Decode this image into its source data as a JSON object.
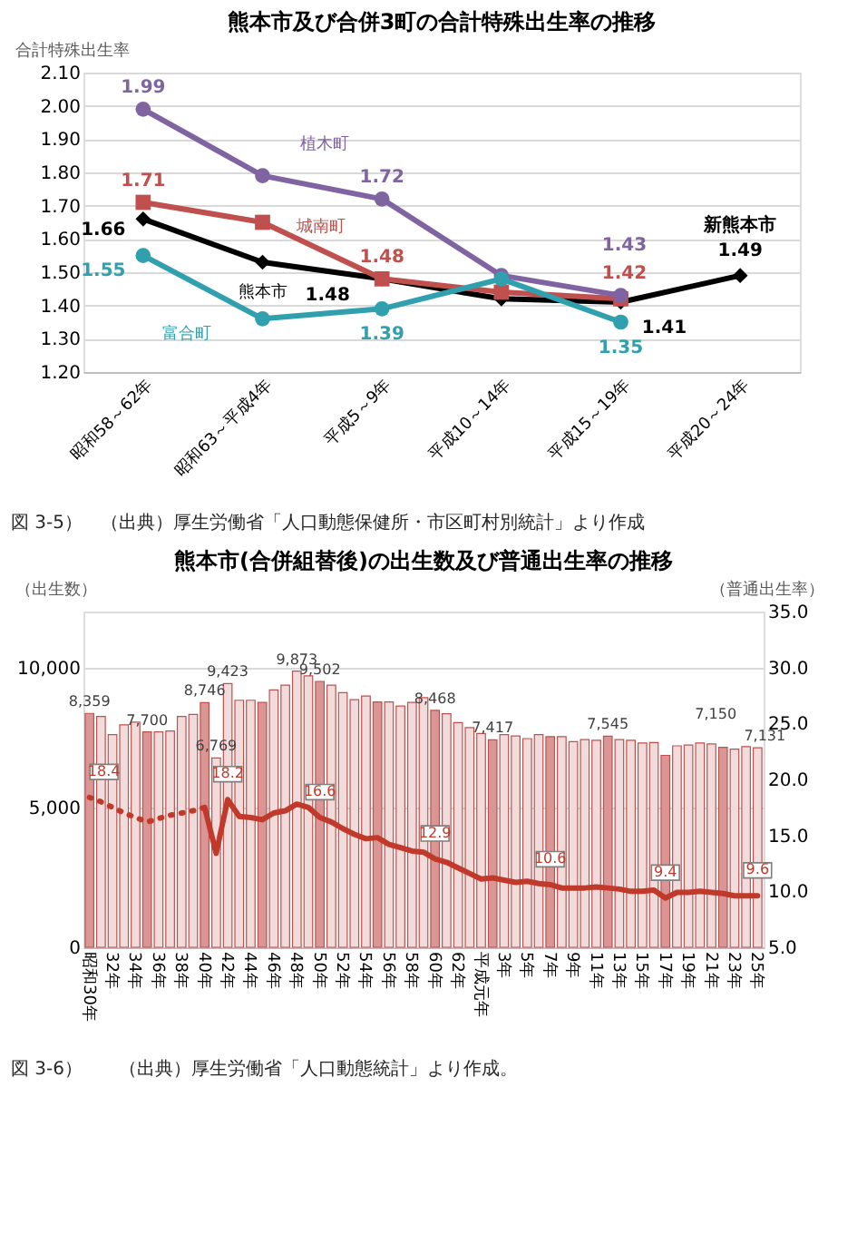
{
  "chart_data": [
    {
      "type": "line",
      "title": "熊本市及び合併3町の合計特殊出生率の推移",
      "ylabel": "合計特殊出生率",
      "categories": [
        "昭和58～62年",
        "昭和63～平成4年",
        "平成5～9年",
        "平成10～14年",
        "平成15～19年",
        "平成20～24年"
      ],
      "ylim": [
        1.2,
        2.1
      ],
      "yticks": [
        {
          "value": 1.2,
          "label": "1.20"
        },
        {
          "value": 1.3,
          "label": "1.30"
        },
        {
          "value": 1.4,
          "label": "1.40"
        },
        {
          "value": 1.5,
          "label": "1.50"
        },
        {
          "value": 1.6,
          "label": "1.60"
        },
        {
          "value": 1.7,
          "label": "1.70"
        },
        {
          "value": 1.8,
          "label": "1.80"
        },
        {
          "value": 1.9,
          "label": "1.90"
        },
        {
          "value": 2.0,
          "label": "2.00"
        },
        {
          "value": 2.1,
          "label": "2.10"
        }
      ],
      "grid": "y",
      "line_style": "solid",
      "series": [
        {
          "name": "熊本市",
          "color": "#000000",
          "marker": "diamond",
          "values": [
            1.66,
            1.53,
            1.48,
            1.42,
            1.41,
            1.49
          ],
          "value_labels": [
            "1.66",
            null,
            "1.48",
            null,
            "1.41",
            "1.49"
          ]
        },
        {
          "name": "城南町",
          "color": "#c0504d",
          "marker": "square",
          "values": [
            1.71,
            1.65,
            1.48,
            1.44,
            1.42,
            null
          ],
          "value_labels": [
            "1.71",
            null,
            "1.48",
            null,
            "1.42",
            null
          ]
        },
        {
          "name": "植木町",
          "color": "#8064a2",
          "marker": "circle",
          "values": [
            1.99,
            1.79,
            1.72,
            1.49,
            1.43,
            null
          ],
          "value_labels": [
            "1.99",
            null,
            "1.72",
            null,
            "1.43",
            null
          ]
        },
        {
          "name": "富合町",
          "color": "#31a0ae",
          "marker": "circle",
          "values": [
            1.55,
            1.36,
            1.39,
            1.48,
            1.35,
            null
          ],
          "value_labels": [
            "1.55",
            null,
            "1.39",
            null,
            "1.35",
            null
          ]
        }
      ],
      "annotations": [
        {
          "text": "新熊本市",
          "x": "平成20～24年",
          "y": 1.49
        },
        "図 3-5）　（出典）厚生労働省「人口動態保健所・市区町村別統計」より作成"
      ]
    },
    {
      "type": "bar",
      "title": "熊本市(合併組替後)の出生数及び普通出生率の推移",
      "ylabel": "（出生数）",
      "y2label": "（普通出生率）",
      "categories": [
        "昭和30年",
        null,
        "32年",
        null,
        "34年",
        null,
        "36年",
        null,
        "38年",
        null,
        "40年",
        null,
        "42年",
        null,
        "44年",
        null,
        "46年",
        null,
        "48年",
        null,
        "50年",
        null,
        "52年",
        null,
        "54年",
        null,
        "56年",
        null,
        "58年",
        null,
        "60年",
        null,
        "62年",
        null,
        "平成元年",
        null,
        "3年",
        null,
        "5年",
        null,
        "7年",
        null,
        "9年",
        null,
        "11年",
        null,
        "13年",
        null,
        "15年",
        null,
        "17年",
        null,
        "19年",
        null,
        "21年",
        null,
        "23年",
        null,
        "25年"
      ],
      "ylim": [
        0,
        12000
      ],
      "yticks": [
        {
          "value": 0,
          "label": "0"
        },
        {
          "value": 5000,
          "label": "5,000"
        },
        {
          "value": 10000,
          "label": "10,000"
        }
      ],
      "y2lim": [
        5,
        35
      ],
      "y2ticks": [
        {
          "value": 5,
          "label": "5.0"
        },
        {
          "value": 10,
          "label": "10.0"
        },
        {
          "value": 15,
          "label": "15.0"
        },
        {
          "value": 20,
          "label": "20.0"
        },
        {
          "value": 25,
          "label": "25.0"
        },
        {
          "value": 30,
          "label": "30.0"
        },
        {
          "value": 35,
          "label": "35.0"
        }
      ],
      "grid": "y",
      "series": [
        {
          "type": "bar",
          "colors": [
            "#d99694",
            "#f2dcdb",
            "#f2dcdb",
            "#f2dcdb",
            "#f2dcdb",
            "#d99694",
            "#f2dcdb",
            "#f2dcdb",
            "#f2dcdb",
            "#f2dcdb",
            "#d99694",
            "#f2dcdb",
            "#f2dcdb",
            "#f2dcdb",
            "#f2dcdb",
            "#d99694",
            "#f2dcdb",
            "#f2dcdb",
            "#f2dcdb",
            "#f2dcdb",
            "#d99694",
            "#f2dcdb",
            "#f2dcdb",
            "#f2dcdb",
            "#f2dcdb",
            "#d99694",
            "#f2dcdb",
            "#f2dcdb",
            "#f2dcdb",
            "#f2dcdb",
            "#d99694",
            "#f2dcdb",
            "#f2dcdb",
            "#f2dcdb",
            "#f2dcdb",
            "#d99694",
            "#f2dcdb",
            "#f2dcdb",
            "#f2dcdb",
            "#f2dcdb",
            "#d99694",
            "#f2dcdb",
            "#f2dcdb",
            "#f2dcdb",
            "#f2dcdb",
            "#d99694",
            "#f2dcdb",
            "#f2dcdb",
            "#f2dcdb",
            "#f2dcdb",
            "#d99694",
            "#f2dcdb",
            "#f2dcdb",
            "#f2dcdb",
            "#f2dcdb",
            "#d99694",
            "#f2dcdb",
            "#f2dcdb",
            "#f2dcdb"
          ],
          "values": [
            8359,
            8250,
            7600,
            7950,
            8050,
            7700,
            7700,
            7730,
            8250,
            8320,
            8746,
            6769,
            9423,
            8830,
            8830,
            8750,
            9200,
            9370,
            9873,
            9700,
            9502,
            9370,
            9100,
            8850,
            8980,
            8770,
            8770,
            8620,
            8750,
            8920,
            8468,
            8350,
            8030,
            7850,
            7640,
            7417,
            7600,
            7550,
            7460,
            7600,
            7530,
            7530,
            7350,
            7420,
            7400,
            7545,
            7420,
            7400,
            7300,
            7320,
            6860,
            7200,
            7230,
            7300,
            7270,
            7150,
            7080,
            7170,
            7131
          ],
          "value_labels": [
            "8,359",
            null,
            null,
            null,
            null,
            "7,700",
            null,
            null,
            null,
            null,
            "8,746",
            "6,769",
            "9,423",
            null,
            null,
            null,
            null,
            null,
            "9,873",
            null,
            "9,502",
            null,
            null,
            null,
            null,
            null,
            null,
            null,
            null,
            null,
            "8,468",
            null,
            null,
            null,
            null,
            "7,417",
            null,
            null,
            null,
            null,
            null,
            null,
            null,
            null,
            null,
            "7,545",
            null,
            null,
            null,
            null,
            null,
            null,
            null,
            null,
            null,
            "7,150",
            null,
            null,
            "7,131"
          ]
        },
        {
          "type": "line",
          "axis": "y2",
          "color": "#c0392b",
          "line_style": "dotted",
          "values": [
            18.4,
            18.0,
            17.5,
            17.0,
            16.6,
            16.2,
            16.5,
            16.8,
            17.0,
            17.2,
            17.5,
            null,
            null,
            null,
            null,
            null,
            null,
            null,
            null,
            null,
            null,
            null,
            null,
            null,
            null,
            null,
            null,
            null,
            null,
            null,
            null,
            null,
            null,
            null,
            null,
            null,
            null,
            null,
            null,
            null,
            null,
            null,
            null,
            null,
            null,
            null,
            null,
            null,
            null,
            null,
            null,
            null,
            null,
            null,
            null,
            null,
            null,
            null,
            null
          ],
          "value_labels": [
            "18.4",
            null,
            null,
            null,
            null,
            null,
            null,
            null,
            null,
            null,
            null,
            null,
            null,
            null,
            null,
            null,
            null,
            null,
            null,
            null,
            null,
            null,
            null,
            null,
            null,
            null,
            null,
            null,
            null,
            null,
            null,
            null,
            null,
            null,
            null,
            null,
            null,
            null,
            null,
            null,
            null,
            null,
            null,
            null,
            null,
            null,
            null,
            null,
            null,
            null,
            null,
            null,
            null,
            null,
            null,
            null,
            null,
            null,
            null
          ]
        },
        {
          "type": "line",
          "axis": "y2",
          "color": "#c0392b",
          "line_style": "solid",
          "values": [
            null,
            null,
            null,
            null,
            null,
            null,
            null,
            null,
            null,
            null,
            17.5,
            13.4,
            18.2,
            16.7,
            16.6,
            16.4,
            17.0,
            17.2,
            17.8,
            17.5,
            16.6,
            16.2,
            15.6,
            15.1,
            14.7,
            14.8,
            14.2,
            13.9,
            13.6,
            13.5,
            12.9,
            12.6,
            12.1,
            11.6,
            11.1,
            11.2,
            11.0,
            10.8,
            10.9,
            10.7,
            10.6,
            10.3,
            10.3,
            10.3,
            10.4,
            10.3,
            10.2,
            10.0,
            10.0,
            10.1,
            9.4,
            9.9,
            9.9,
            10.0,
            9.9,
            9.8,
            9.6,
            9.6,
            9.6
          ],
          "value_labels": [
            null,
            null,
            null,
            null,
            null,
            null,
            null,
            null,
            null,
            null,
            null,
            null,
            "18.2",
            null,
            null,
            null,
            null,
            null,
            null,
            null,
            "16.6",
            null,
            null,
            null,
            null,
            null,
            null,
            null,
            null,
            null,
            "12.9",
            null,
            null,
            null,
            null,
            null,
            null,
            null,
            null,
            null,
            "10.6",
            null,
            null,
            null,
            null,
            null,
            null,
            null,
            null,
            null,
            "9.4",
            null,
            null,
            null,
            null,
            null,
            null,
            null,
            "9.6"
          ]
        }
      ],
      "annotations": [
        "図 3-6）　　（出典）厚生労働省「人口動態統計」より作成。"
      ]
    }
  ]
}
